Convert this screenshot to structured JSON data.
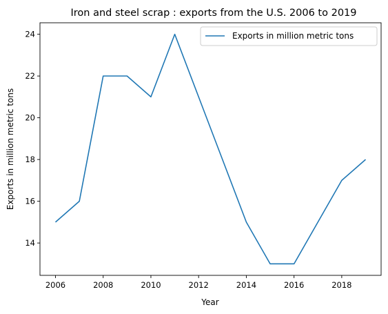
{
  "chart_data": {
    "type": "line",
    "title": "Iron and steel scrap : exports from the U.S. 2006 to 2019",
    "xlabel": "Year",
    "ylabel": "Exports in million metric tons",
    "x": [
      2006,
      2007,
      2008,
      2009,
      2010,
      2011,
      2012,
      2013,
      2014,
      2015,
      2016,
      2017,
      2018,
      2019
    ],
    "series": [
      {
        "name": "Exports in million metric tons",
        "values": [
          15,
          16,
          22,
          22,
          21,
          24,
          21,
          18,
          15,
          13,
          13,
          15,
          17,
          18
        ],
        "color": "#1f77b4"
      }
    ],
    "xlim": [
      2005.35,
      2019.65
    ],
    "ylim": [
      12.45,
      24.55
    ],
    "xticks": [
      "2006",
      "2008",
      "2010",
      "2012",
      "2014",
      "2016",
      "2018"
    ],
    "yticks": [
      "14",
      "16",
      "18",
      "20",
      "22",
      "24"
    ],
    "grid": false,
    "legend": "top-right"
  }
}
